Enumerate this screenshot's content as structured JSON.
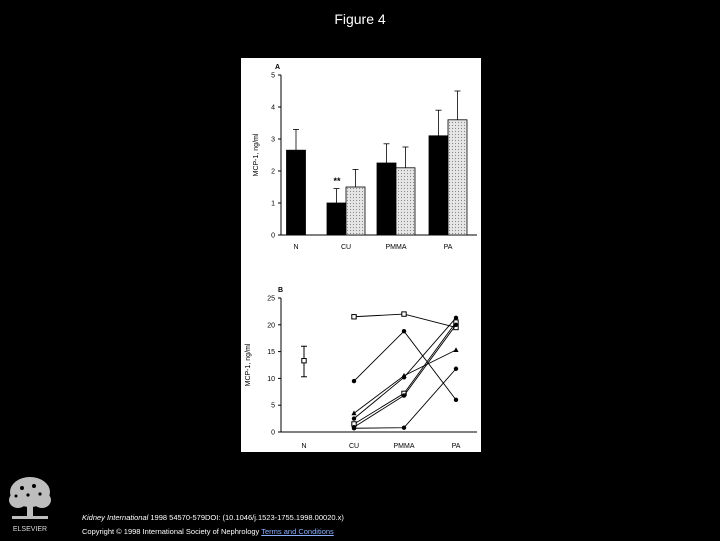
{
  "figure_title": "Figure 4",
  "footer": {
    "journal": "Kidney International",
    "citation": " 1998 54570-579DOI: (10.1046/j.1523-1755.1998.00020.x)",
    "copyright": "Copyright © 1998 International Society of Nephrology ",
    "terms_link": "Terms and Conditions",
    "publisher": "ELSEVIER"
  },
  "colors": {
    "background": "#000000",
    "panel": "#ffffff",
    "bar_dark": "#000000",
    "bar_light": "#d9d9d9"
  },
  "chart_data": [
    {
      "type": "bar",
      "panel_label": "A",
      "ylabel": "MCP-1, ng/ml",
      "ylim": [
        0,
        5
      ],
      "yticks": [
        0,
        1,
        2,
        3,
        4,
        5
      ],
      "categories": [
        "N",
        "CU",
        "PMMA",
        "PA"
      ],
      "series": [
        {
          "values": [
            2.65,
            1.0,
            2.25,
            3.1
          ],
          "errors": [
            0.65,
            0.45,
            0.6,
            0.8
          ],
          "fill": "#000000"
        },
        {
          "values": [
            null,
            1.5,
            2.1,
            3.6
          ],
          "errors": [
            null,
            0.55,
            0.65,
            0.9
          ],
          "fill": "#d9d9d9"
        }
      ],
      "annotations": [
        {
          "category": "CU",
          "text": "**"
        }
      ]
    },
    {
      "type": "line",
      "panel_label": "B",
      "ylabel": "MCP-1, ng/ml",
      "ylim": [
        0,
        25
      ],
      "yticks": [
        0,
        5,
        10,
        15,
        20,
        25
      ],
      "categories": [
        "N",
        "CU",
        "PMMA",
        "PA"
      ],
      "n_point": {
        "value": 13.3,
        "low": 10.3,
        "high": 16.0
      },
      "series": [
        {
          "marker": "square",
          "values": [
            null,
            21.5,
            22.0,
            19.5
          ]
        },
        {
          "marker": "circle",
          "values": [
            null,
            9.5,
            18.8,
            6.0
          ]
        },
        {
          "marker": "triangle",
          "values": [
            null,
            3.5,
            10.5,
            15.3
          ]
        },
        {
          "marker": "circle",
          "values": [
            null,
            2.5,
            10.2,
            21.3
          ]
        },
        {
          "marker": "square",
          "values": [
            null,
            1.5,
            7.2,
            20.5
          ]
        },
        {
          "marker": "circle",
          "values": [
            null,
            0.9,
            6.8,
            20.0
          ]
        },
        {
          "marker": "circle",
          "values": [
            null,
            0.7,
            0.8,
            11.8
          ]
        }
      ]
    }
  ]
}
